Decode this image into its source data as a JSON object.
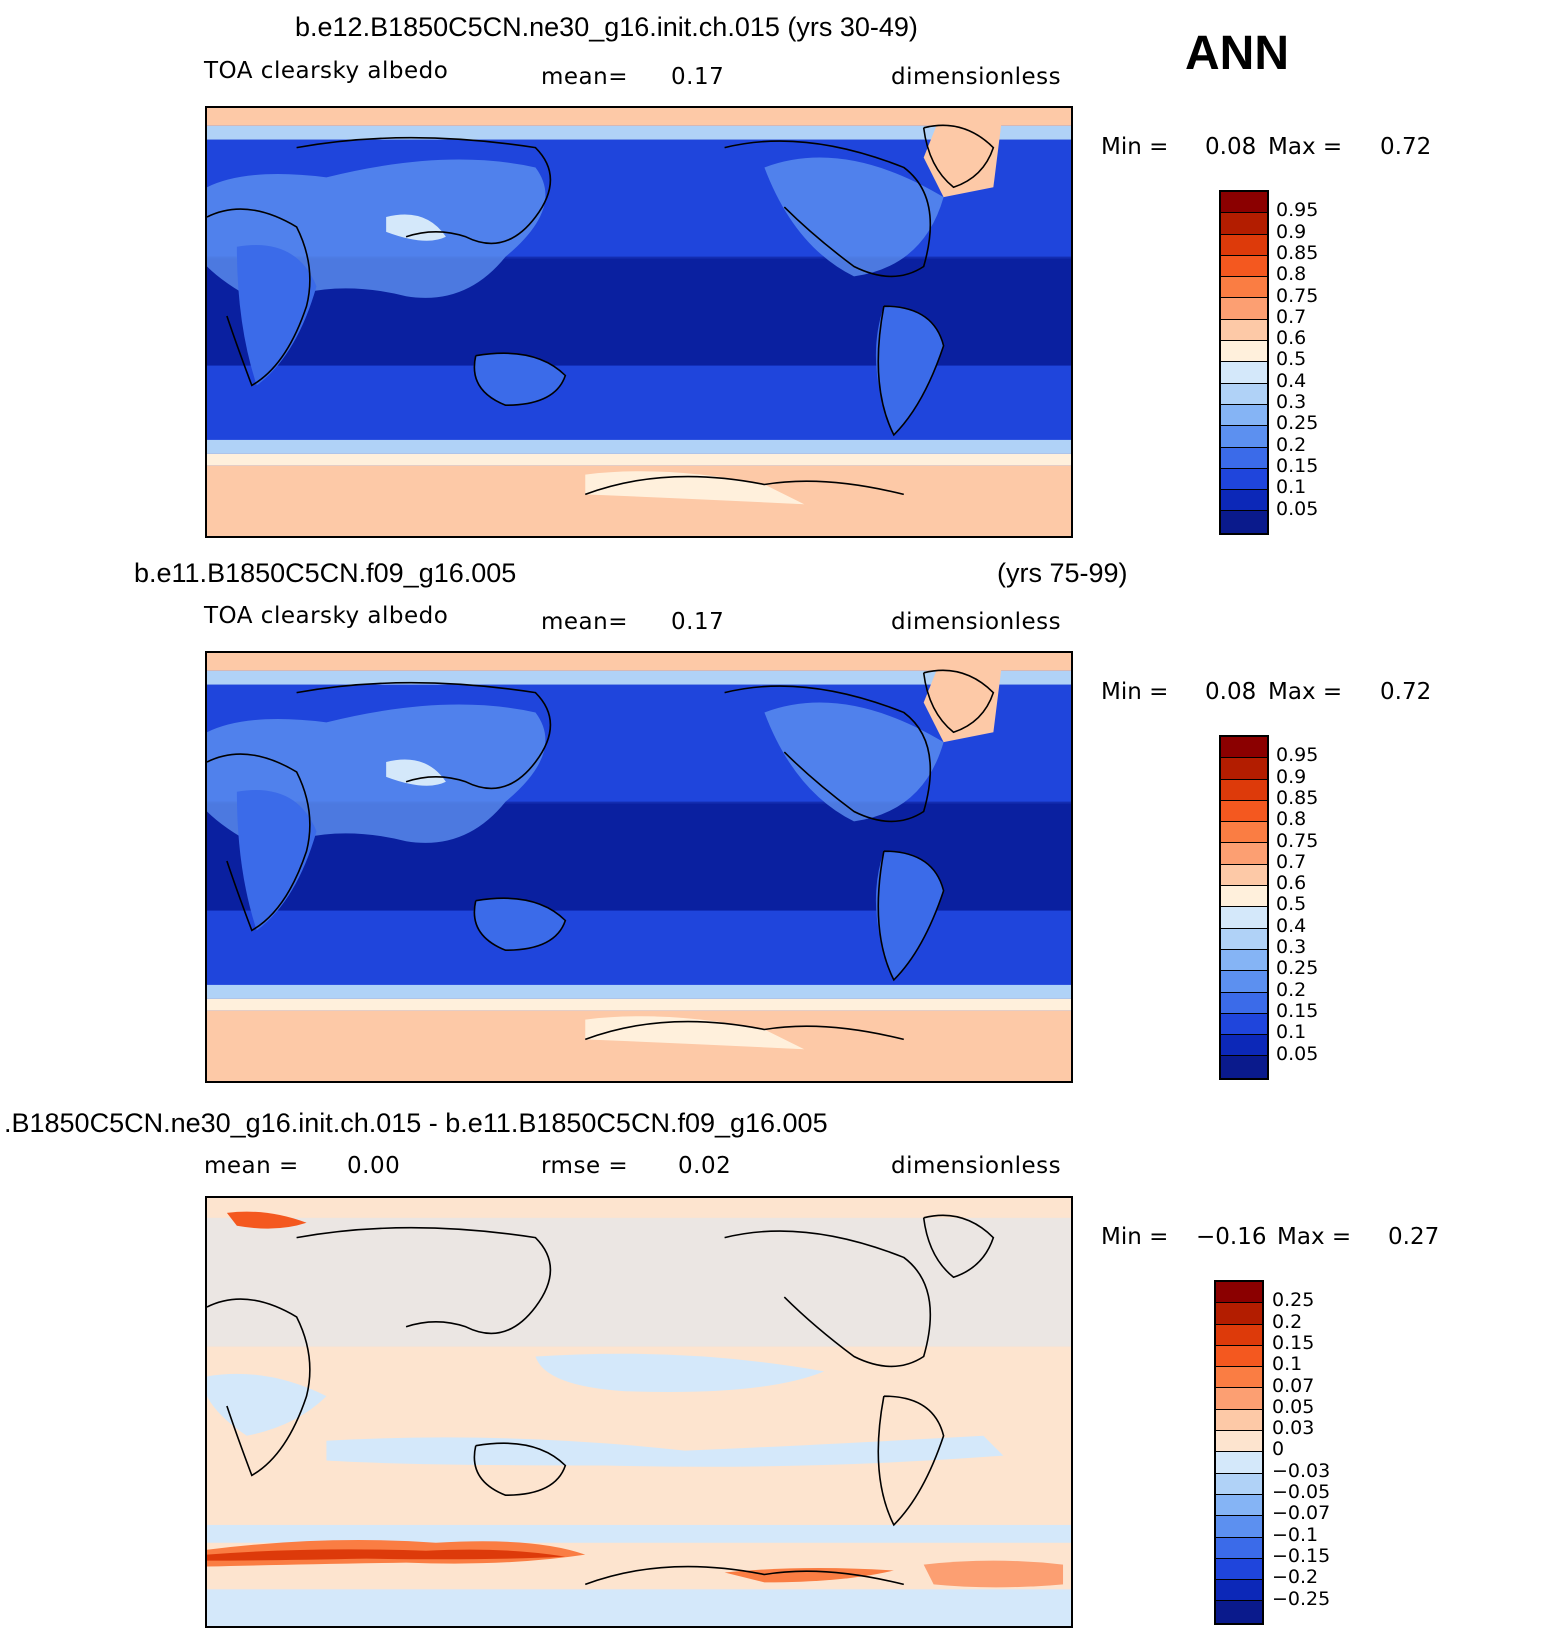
{
  "ann_label": "ANN",
  "panels": [
    {
      "title": "b.e12.B1850C5CN.ne30_g16.init.ch.015 (yrs 30-49)",
      "title_right": "",
      "left_label": "TOA clearsky albedo",
      "stat_label": "mean=",
      "stat_value": "0.17",
      "units": "dimensionless",
      "min_label": "Min =",
      "min_value": "0.08",
      "max_label": "Max =",
      "max_value": "0.72",
      "palette": "abs",
      "colorbar_labels": [
        "0.95",
        "0.9",
        "0.85",
        "0.8",
        "0.75",
        "0.7",
        "0.6",
        "0.5",
        "0.4",
        "0.3",
        "0.25",
        "0.2",
        "0.15",
        "0.1",
        "0.05"
      ]
    },
    {
      "title": "b.e11.B1850C5CN.f09_g16.005",
      "title_right": "(yrs 75-99)",
      "left_label": "TOA clearsky albedo",
      "stat_label": "mean=",
      "stat_value": "0.17",
      "units": "dimensionless",
      "min_label": "Min =",
      "min_value": "0.08",
      "max_label": "Max =",
      "max_value": "0.72",
      "palette": "abs",
      "colorbar_labels": [
        "0.95",
        "0.9",
        "0.85",
        "0.8",
        "0.75",
        "0.7",
        "0.6",
        "0.5",
        "0.4",
        "0.3",
        "0.25",
        "0.2",
        "0.15",
        "0.1",
        "0.05"
      ]
    },
    {
      "title": ".B1850C5CN.ne30_g16.init.ch.015 - b.e11.B1850C5CN.f09_g16.005",
      "title_right": "",
      "left_label": "mean =",
      "left_value": "0.00",
      "stat_label": "rmse =",
      "stat_value": "0.02",
      "units": "dimensionless",
      "min_label": "Min =",
      "min_value": "−0.16",
      "max_label": "Max =",
      "max_value": "0.27",
      "palette": "diff",
      "colorbar_labels": [
        "0.25",
        "0.2",
        "0.15",
        "0.1",
        "0.07",
        "0.05",
        "0.03",
        "0",
        "−0.03",
        "−0.05",
        "−0.07",
        "−0.1",
        "−0.15",
        "−0.2",
        "−0.25"
      ]
    }
  ],
  "colors": {
    "abs_palette": [
      "#8b0000",
      "#b31d00",
      "#dd3a0a",
      "#f4581f",
      "#fa7d43",
      "#fc9f72",
      "#fdc9a7",
      "#fff0dc",
      "#d4e8fa",
      "#b0d2f7",
      "#85b4f5",
      "#5c90f0",
      "#3b6be9",
      "#1f45dc",
      "#0c28b8",
      "#0a1a8c"
    ],
    "diff_palette": [
      "#8b0000",
      "#b31d00",
      "#dd3a0a",
      "#f4581f",
      "#fa7d43",
      "#fc9f72",
      "#fdc9a7",
      "#fde4cf",
      "#d4e8fa",
      "#b0d2f7",
      "#85b4f5",
      "#5c90f0",
      "#3b6be9",
      "#1f45dc",
      "#0c28b8",
      "#0a1a8c"
    ]
  }
}
